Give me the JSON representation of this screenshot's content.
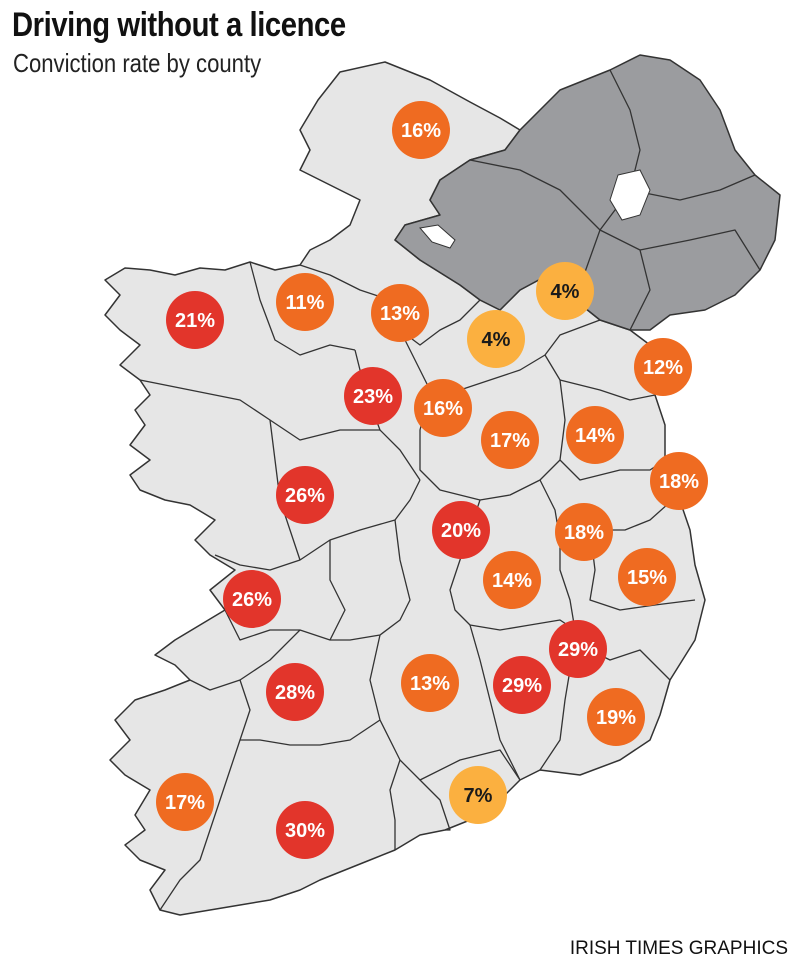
{
  "title": "Driving without a licence",
  "subtitle": "Conviction rate by county",
  "credit": "IRISH TIMES GRAPHICS",
  "colors": {
    "land": "#e6e6e6",
    "border": "#333333",
    "northern_ireland": "#9b9c9f",
    "low": "#fbb040",
    "mid": "#ef6b21",
    "high": "#e2352b",
    "label_light": "#ffffff",
    "label_dark": "#1a1a1a"
  },
  "chart_data": {
    "type": "choropleth-bubble",
    "unit": "%",
    "values": [
      {
        "label": "16%",
        "value": 16,
        "level": "mid"
      },
      {
        "label": "21%",
        "value": 21,
        "level": "high"
      },
      {
        "label": "11%",
        "value": 11,
        "level": "mid"
      },
      {
        "label": "13%",
        "value": 13,
        "level": "mid"
      },
      {
        "label": "4%",
        "value": 4,
        "level": "low"
      },
      {
        "label": "4%",
        "value": 4,
        "level": "low"
      },
      {
        "label": "12%",
        "value": 12,
        "level": "mid"
      },
      {
        "label": "23%",
        "value": 23,
        "level": "high"
      },
      {
        "label": "16%",
        "value": 16,
        "level": "mid"
      },
      {
        "label": "17%",
        "value": 17,
        "level": "mid"
      },
      {
        "label": "14%",
        "value": 14,
        "level": "mid"
      },
      {
        "label": "18%",
        "value": 18,
        "level": "mid"
      },
      {
        "label": "26%",
        "value": 26,
        "level": "high"
      },
      {
        "label": "20%",
        "value": 20,
        "level": "high"
      },
      {
        "label": "18%",
        "value": 18,
        "level": "mid"
      },
      {
        "label": "14%",
        "value": 14,
        "level": "mid"
      },
      {
        "label": "15%",
        "value": 15,
        "level": "mid"
      },
      {
        "label": "26%",
        "value": 26,
        "level": "high"
      },
      {
        "label": "29%",
        "value": 29,
        "level": "high"
      },
      {
        "label": "28%",
        "value": 28,
        "level": "high"
      },
      {
        "label": "13%",
        "value": 13,
        "level": "mid"
      },
      {
        "label": "29%",
        "value": 29,
        "level": "high"
      },
      {
        "label": "19%",
        "value": 19,
        "level": "mid"
      },
      {
        "label": "17%",
        "value": 17,
        "level": "mid"
      },
      {
        "label": "7%",
        "value": 7,
        "level": "low"
      },
      {
        "label": "30%",
        "value": 30,
        "level": "high"
      }
    ]
  }
}
